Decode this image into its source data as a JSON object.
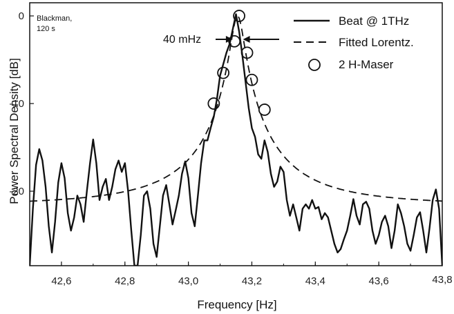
{
  "chart_data": {
    "type": "line",
    "title": "",
    "xlabel": "Frequency  [Hz]",
    "ylabel": "Power Spectral Density [dB]",
    "xlim": [
      42.5,
      43.8
    ],
    "ylim": [
      -28.5,
      1.5
    ],
    "x_ticks": [
      42.6,
      42.8,
      43.0,
      43.2,
      43.4,
      43.6,
      43.8
    ],
    "x_tick_labels": [
      "42,6",
      "42,8",
      "43,0",
      "43,2",
      "43,4",
      "43,6",
      "43,8"
    ],
    "y_ticks": [
      0,
      -10,
      -20
    ],
    "y_tick_labels": [
      "0",
      "-10",
      "-20"
    ],
    "legend_position": "top-right",
    "note": [
      "Blackman,",
      "120 s"
    ],
    "annotation": "40 mHz",
    "series": [
      {
        "name": "Beat @ 1THz",
        "style": "solid",
        "x": [
          42.5,
          42.51,
          42.52,
          42.53,
          42.54,
          42.55,
          42.56,
          42.57,
          42.58,
          42.59,
          42.6,
          42.61,
          42.62,
          42.63,
          42.64,
          42.65,
          42.66,
          42.67,
          42.68,
          42.69,
          42.7,
          42.71,
          42.72,
          42.73,
          42.74,
          42.75,
          42.76,
          42.77,
          42.78,
          42.79,
          42.8,
          42.81,
          42.82,
          42.83,
          42.84,
          42.85,
          42.86,
          42.87,
          42.88,
          42.89,
          42.9,
          42.91,
          42.92,
          42.93,
          42.94,
          42.95,
          42.96,
          42.97,
          42.98,
          42.99,
          43.0,
          43.01,
          43.02,
          43.03,
          43.04,
          43.05,
          43.06,
          43.07,
          43.08,
          43.09,
          43.1,
          43.11,
          43.12,
          43.13,
          43.14,
          43.15,
          43.16,
          43.17,
          43.18,
          43.19,
          43.2,
          43.21,
          43.22,
          43.23,
          43.24,
          43.25,
          43.26,
          43.27,
          43.28,
          43.29,
          43.3,
          43.31,
          43.32,
          43.33,
          43.34,
          43.35,
          43.36,
          43.37,
          43.38,
          43.39,
          43.4,
          43.41,
          43.42,
          43.43,
          43.44,
          43.45,
          43.46,
          43.47,
          43.48,
          43.49,
          43.5,
          43.51,
          43.52,
          43.53,
          43.54,
          43.55,
          43.56,
          43.57,
          43.58,
          43.59,
          43.6,
          43.61,
          43.62,
          43.63,
          43.64,
          43.65,
          43.66,
          43.67,
          43.68,
          43.69,
          43.7,
          43.71,
          43.72,
          43.73,
          43.74,
          43.75,
          43.76,
          43.77,
          43.78,
          43.79,
          43.8
        ],
        "y": [
          -28.5,
          -22,
          -17,
          -15.2,
          -16.5,
          -19.5,
          -24,
          -27,
          -23.5,
          -19,
          -16.8,
          -18.5,
          -22.5,
          -24.5,
          -23,
          -20.5,
          -21.5,
          -23.5,
          -20,
          -16.8,
          -14.1,
          -16.8,
          -21,
          -19.5,
          -18.6,
          -21,
          -19.5,
          -17.5,
          -16.5,
          -17.8,
          -16.8,
          -20,
          -24.5,
          -28.5,
          -28.5,
          -25,
          -20.5,
          -20,
          -22,
          -26,
          -27.5,
          -24,
          -20.5,
          -19.3,
          -21.5,
          -23.8,
          -22.2,
          -20.5,
          -18,
          -16.6,
          -18.5,
          -22.5,
          -24,
          -20.5,
          -16.8,
          -14.2,
          -14.2,
          -12.8,
          -11.5,
          -9.5,
          -6.8,
          -5.5,
          -4.2,
          -3.2,
          -1.5,
          0.2,
          -1.8,
          -4.5,
          -7.5,
          -10.5,
          -12.8,
          -13.8,
          -15.8,
          -16.3,
          -14.2,
          -15.5,
          -18,
          -19.5,
          -18.9,
          -17.2,
          -17.8,
          -21,
          -22.8,
          -21.5,
          -23,
          -24.5,
          -22,
          -21.5,
          -22,
          -21,
          -22,
          -21.8,
          -23.2,
          -22.5,
          -23,
          -24.5,
          -26,
          -27,
          -26.6,
          -25.5,
          -24.5,
          -22.8,
          -20.9,
          -22.8,
          -23.8,
          -21.5,
          -21.2,
          -22,
          -24.5,
          -26,
          -25,
          -23.5,
          -22.8,
          -24,
          -26.5,
          -24.5,
          -21.5,
          -22.5,
          -24,
          -26,
          -26.8,
          -25,
          -23,
          -22.4,
          -24.5,
          -27,
          -24.2,
          -21,
          -19.8,
          -22,
          -28.5
        ],
        "color": "#111111"
      },
      {
        "name": "Fitted Lorentz.",
        "style": "dashed",
        "center": 43.155,
        "half_width": 0.02,
        "peak_db": 0,
        "floor_db": -21.7,
        "color": "#111111"
      },
      {
        "name": "2 H-Maser",
        "style": "circle-markers",
        "x": [
          43.08,
          43.11,
          43.145,
          43.16,
          43.185,
          43.2,
          43.24
        ],
        "y": [
          -10,
          -6.5,
          -2.9,
          0.0,
          -4.2,
          -7.3,
          -10.7
        ],
        "color": "#111111"
      }
    ]
  }
}
